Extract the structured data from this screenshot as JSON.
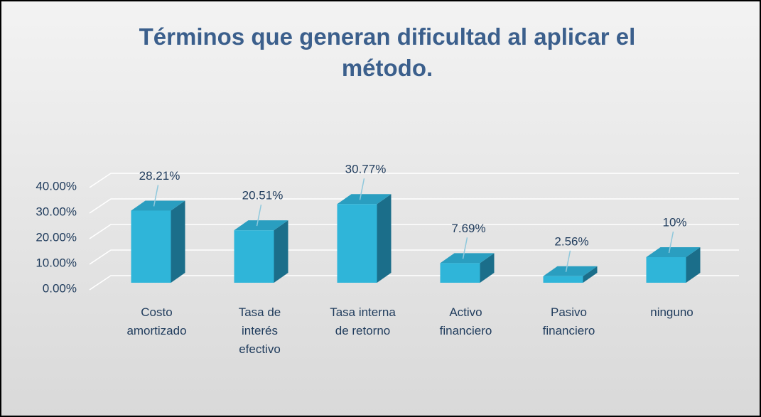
{
  "chart_data": {
    "type": "bar3d",
    "title": "Términos que generan dificultad al aplicar el método.",
    "categories": [
      "Costo amortizado",
      "Tasa de interés efectivo",
      "Tasa interna de retorno",
      "Activo financiero",
      "Pasivo financiero",
      "ninguno"
    ],
    "values": [
      28.21,
      20.51,
      30.77,
      7.69,
      2.56,
      10
    ],
    "value_labels": [
      "28.21%",
      "20.51%",
      "30.77%",
      "7.69%",
      "2.56%",
      "10%"
    ],
    "color": "#2fb5d9",
    "ylim": [
      0,
      40
    ],
    "yticks": [
      {
        "value": 0,
        "label": "0.00%"
      },
      {
        "value": 10,
        "label": "10.00%"
      },
      {
        "value": 20,
        "label": "20.00%"
      },
      {
        "value": 30,
        "label": "30.00%"
      },
      {
        "value": 40,
        "label": "40.00%"
      }
    ],
    "grid": true
  }
}
